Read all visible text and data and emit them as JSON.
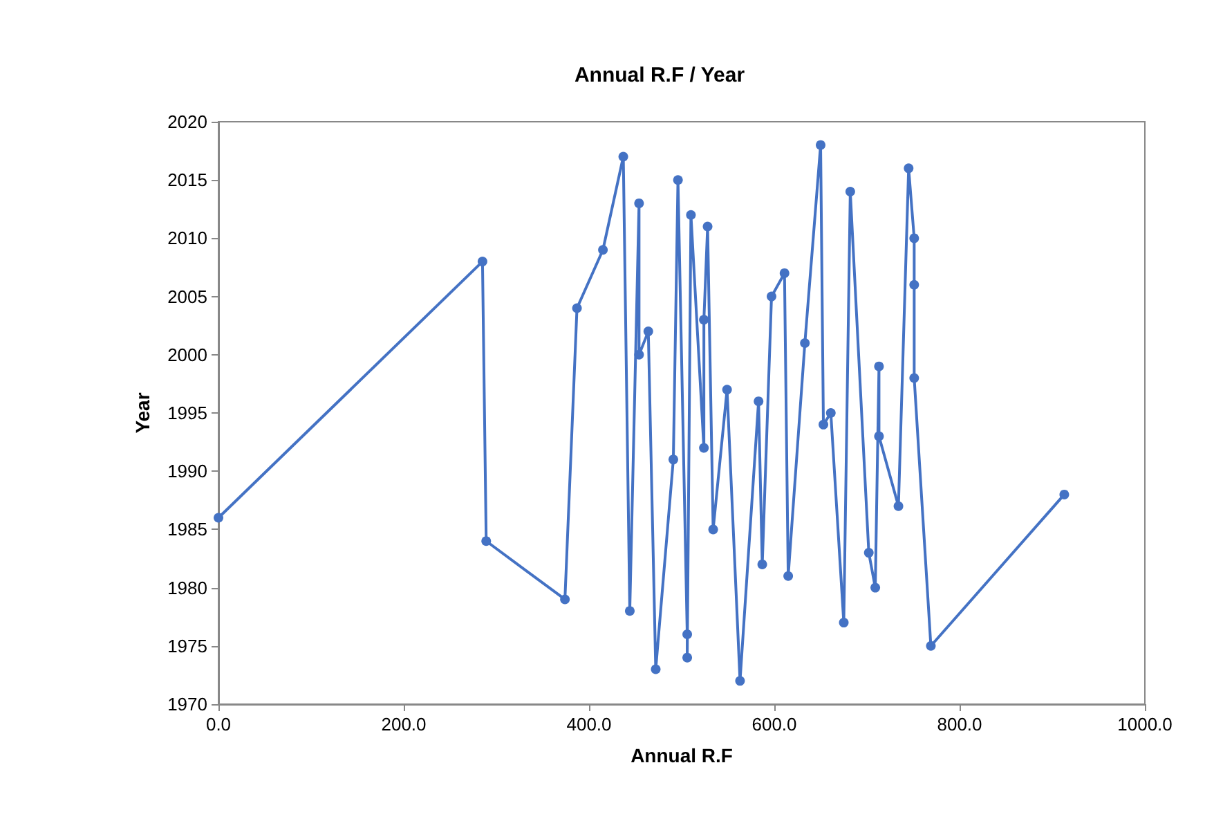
{
  "chart_data": {
    "type": "line",
    "title": "Annual R.F / Year",
    "xlabel": "Annual R.F",
    "ylabel": "Year",
    "x": [
      0,
      285,
      289,
      374,
      387,
      415,
      437,
      444,
      454,
      454,
      464,
      472,
      491,
      496,
      506,
      506,
      510,
      524,
      524,
      528,
      534,
      549,
      563,
      583,
      587,
      597,
      611,
      615,
      633,
      650,
      653,
      661,
      675,
      682,
      702,
      709,
      713,
      713,
      734,
      745,
      751,
      751,
      751,
      769,
      913
    ],
    "series": [
      {
        "color": "#4472c4",
        "values": [
          1986,
          2008,
          1984,
          1979,
          2004,
          2009,
          2017,
          1978,
          2013,
          2000,
          2002,
          1973,
          1991,
          2015,
          1976,
          1974,
          2012,
          1992,
          2003,
          2011,
          1985,
          1997,
          1972,
          1996,
          1982,
          2005,
          2007,
          1981,
          2001,
          2018,
          1994,
          1995,
          1977,
          2014,
          1983,
          1980,
          1999,
          1993,
          1987,
          2016,
          2010,
          2006,
          1998,
          1975,
          1988
        ]
      }
    ],
    "xlim": [
      0,
      1000
    ],
    "xticks": [
      {
        "value": 0,
        "label": "0.0"
      },
      {
        "value": 200,
        "label": "200.0"
      },
      {
        "value": 400,
        "label": "400.0"
      },
      {
        "value": 600,
        "label": "600.0"
      },
      {
        "value": 800,
        "label": "800.0"
      },
      {
        "value": 1000,
        "label": "1000.0"
      }
    ],
    "ylim": [
      1970,
      2020
    ],
    "yticks": [
      1970,
      1975,
      1980,
      1985,
      1990,
      1995,
      2000,
      2005,
      2010,
      2015,
      2020
    ],
    "grid": false,
    "marker": "circle",
    "line_style": "solid"
  }
}
